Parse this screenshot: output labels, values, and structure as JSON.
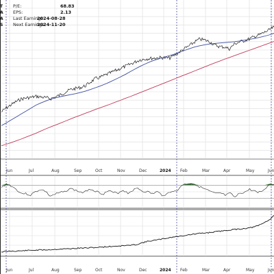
{
  "info": [
    {
      "key": "P/E:",
      "value": "68.83"
    },
    {
      "key": "EPS:",
      "value": "2.13"
    },
    {
      "key": "Last Earnings:",
      "value": "2024-08-28"
    },
    {
      "key": "Next Earnings:",
      "value": "2024-11-20"
    }
  ],
  "left_edge_labels": [
    "T",
    "A",
    "A",
    "S"
  ],
  "colors": {
    "price": "#1a1a1a",
    "ma_short": "#3b4a9e",
    "ma_long": "#c03a5a",
    "rsi_fill": "#3d7a3d",
    "rsi_fill_low": "#9cc39c",
    "grid": "#dcdcdc",
    "vline": "#4a4aa0"
  },
  "chart_data": [
    {
      "type": "line",
      "panel": "price",
      "x_labels": [
        "Jun",
        "Jul",
        "Aug",
        "Sep",
        "Oct",
        "Nov",
        "Dec",
        "2024",
        "Feb",
        "Mar",
        "Apr",
        "May",
        "Jun"
      ],
      "series": [
        {
          "key": "price",
          "values": [
            17.5,
            19.6,
            21.2,
            22.8,
            24.1,
            24.6,
            24.9,
            25.4,
            25.1,
            24.7,
            24.3,
            25.2,
            26.3,
            27.7,
            28.9,
            29.4,
            29.9,
            30.8,
            32.7,
            34.4,
            35.1,
            36.2,
            37.3,
            38.4,
            39.5,
            40.6,
            41.7,
            42.8,
            43.9,
            44.3,
            44.6,
            44.8,
            45.0,
            44.9,
            44.8,
            46.4,
            48.0,
            49.6,
            51.2,
            52.9,
            54.4,
            53.9,
            53.1,
            51.4,
            50.6,
            50.4,
            49.4,
            51.9,
            52.9,
            53.6,
            54.4,
            55.6,
            56.5,
            57.7,
            58.9,
            60.6
          ]
        },
        {
          "key": "ma_short",
          "values": [
            10.6,
            12.0,
            13.5,
            15.0,
            16.5,
            18.0,
            19.5,
            21.0,
            22.1,
            23.1,
            24.0,
            24.7,
            25.3,
            25.8,
            26.3,
            26.8,
            27.4,
            28.1,
            28.9,
            29.8,
            30.7,
            31.7,
            32.8,
            34.0,
            35.2,
            36.5,
            37.9,
            39.3,
            40.6,
            41.8,
            42.9,
            43.8,
            44.6,
            45.4,
            46.1,
            46.9,
            47.8,
            48.7,
            49.6,
            50.4,
            51.0,
            51.5,
            51.9,
            52.2,
            52.4,
            52.6,
            52.8,
            53.1,
            53.4,
            53.8,
            54.2,
            54.7,
            55.2,
            55.8,
            56.5,
            57.3
          ]
        },
        {
          "key": "ma_long",
          "values": [
            0.4,
            1.2,
            2.0,
            2.9,
            3.8,
            4.8,
            5.8,
            6.8,
            7.9,
            9.0,
            10.0,
            11.0,
            12.0,
            13.0,
            14.0,
            15.0,
            15.9,
            16.9,
            17.8,
            18.8,
            19.7,
            20.6,
            21.5,
            22.5,
            23.4,
            24.4,
            25.3,
            26.3,
            27.3,
            28.3,
            29.3,
            30.3,
            31.3,
            32.3,
            33.3,
            34.3,
            35.3,
            36.3,
            37.3,
            38.3,
            39.3,
            40.3,
            41.3,
            42.3,
            43.2,
            44.2,
            45.1,
            46.0,
            46.9,
            47.8,
            48.7,
            49.6,
            50.5,
            51.4,
            52.3,
            53.2
          ]
        }
      ]
    },
    {
      "type": "line",
      "panel": "rsi",
      "bands": [
        30,
        70
      ],
      "values": [
        62,
        74,
        68,
        58,
        46,
        44,
        40,
        50,
        57,
        52,
        37,
        42,
        47,
        50,
        60,
        56,
        50,
        47,
        59,
        55,
        48,
        44,
        53,
        47,
        47,
        55,
        46,
        55,
        61,
        52,
        50,
        44,
        50,
        40,
        43,
        53,
        50,
        70,
        74,
        76,
        72,
        63,
        57,
        50,
        44,
        46,
        39,
        45,
        33,
        46,
        49,
        57,
        52,
        49,
        55,
        74,
        72
      ]
    },
    {
      "type": "line",
      "panel": "relative",
      "values": [
        1.0,
        1.01,
        1.02,
        1.025,
        1.03,
        1.04,
        1.05,
        1.055,
        1.06,
        1.065,
        1.07,
        1.08,
        1.09,
        1.095,
        1.1,
        1.11,
        1.12,
        1.125,
        1.13,
        1.14,
        1.15,
        1.16,
        1.17,
        1.18,
        1.19,
        1.2,
        1.21,
        1.22,
        1.25,
        1.3,
        1.34,
        1.37,
        1.39,
        1.42,
        1.45,
        1.48,
        1.5,
        1.52,
        1.55,
        1.57,
        1.59,
        1.61,
        1.62,
        1.64,
        1.66,
        1.68,
        1.7,
        1.72,
        1.74,
        1.75,
        1.77,
        1.79,
        1.82,
        1.88,
        1.96,
        2.05,
        2.2
      ]
    }
  ]
}
